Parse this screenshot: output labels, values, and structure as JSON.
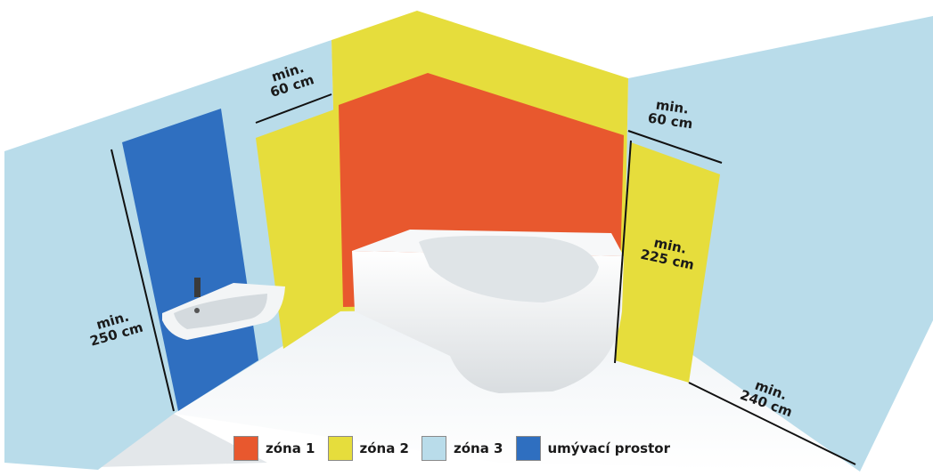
{
  "colors": {
    "zone1": "#e8582e",
    "zone2": "#e6dd3c",
    "zone3": "#b9dcea",
    "wash": "#2f6fc0"
  },
  "dimensions": {
    "top_left": {
      "line1": "min.",
      "line2": "60 cm"
    },
    "top_right": {
      "line1": "min.",
      "line2": "60 cm"
    },
    "left_height": {
      "line1": "min.",
      "line2": "250 cm"
    },
    "right_height": {
      "line1": "min.",
      "line2": "225 cm"
    },
    "bottom_right": {
      "line1": "min.",
      "line2": "240 cm"
    }
  },
  "legend": [
    {
      "label": "zóna 1",
      "color": "#e8582e"
    },
    {
      "label": "zóna 2",
      "color": "#e6dd3c"
    },
    {
      "label": "zóna 3",
      "color": "#b9dcea"
    },
    {
      "label": "umývací prostor",
      "color": "#2f6fc0"
    }
  ]
}
